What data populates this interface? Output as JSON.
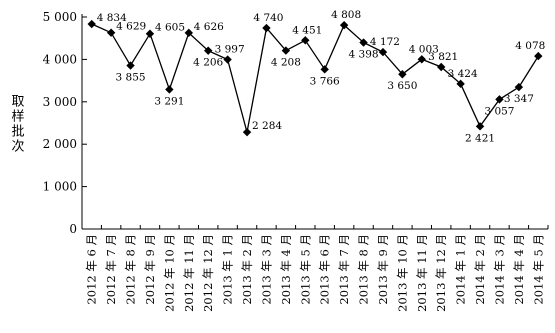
{
  "chart_data": {
    "type": "line",
    "ylabel": "取样批次",
    "xlabel": "",
    "ylim": [
      0,
      5000
    ],
    "yticks": [
      0,
      1000,
      2000,
      3000,
      4000,
      5000
    ],
    "ytick_labels": [
      "0",
      "1 000",
      "2 000",
      "3 000",
      "4 000",
      "5 000"
    ],
    "grid": false,
    "marker": "diamond",
    "categories": [
      "2012 年 6 月",
      "2012 年 7 月",
      "2012 年 8 月",
      "2012 年 9 月",
      "2012 年 10 月",
      "2012 年 11 月",
      "2012 年 12 月",
      "2013 年 1 月",
      "2013 年 2 月",
      "2013 年 3 月",
      "2013 年 4 月",
      "2013 年 5 月",
      "2013 年 6 月",
      "2013 年 7 月",
      "2013 年 8 月",
      "2013 年 9 月",
      "2013 年 10 月",
      "2013 年 11 月",
      "2013 年 12 月",
      "2014 年 1 月",
      "2014 年 2 月",
      "2014 年 3 月",
      "2014 年 4 月",
      "2014 年 5 月"
    ],
    "values": [
      4834,
      4629,
      3855,
      4605,
      3291,
      4626,
      4206,
      3997,
      2284,
      4740,
      4208,
      4451,
      3766,
      4808,
      4398,
      4172,
      3650,
      4003,
      3821,
      3424,
      2421,
      3057,
      3347,
      4078
    ],
    "data_labels": [
      "4 834",
      "4 629",
      "3 855",
      "4 605",
      "3 291",
      "4 626",
      "4 206",
      "3 997",
      "2 284",
      "4 740",
      "4 208",
      "4 451",
      "3 766",
      "4 808",
      "4 398",
      "4 172",
      "3 650",
      "4 003",
      "3 821",
      "3 424",
      "2 421",
      "3 057",
      "3 347",
      "4 078"
    ],
    "label_positions": [
      "right",
      "right",
      "below",
      "right",
      "below",
      "right",
      "below",
      "above",
      "right",
      "above",
      "below",
      "above",
      "below",
      "above",
      "below",
      "above",
      "below",
      "above",
      "above",
      "above",
      "below",
      "below",
      "below",
      "above"
    ]
  }
}
